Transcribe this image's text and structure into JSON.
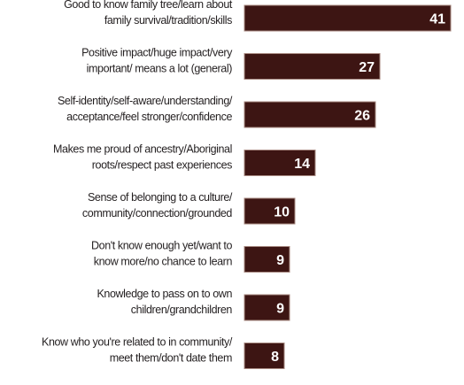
{
  "chart_data": {
    "type": "bar",
    "orientation": "horizontal",
    "categories": [
      [
        "Good to know family tree/learn about",
        "family survival/tradition/skills"
      ],
      [
        "Positive impact/huge impact/very",
        "important/ means a lot (general)"
      ],
      [
        "Self-identity/self-aware/understanding/",
        "acceptance/feel stronger/confidence"
      ],
      [
        "Makes me proud of ancestry/Aboriginal",
        "roots/respect past experiences"
      ],
      [
        "Sense of belonging to a culture/",
        "community/connection/grounded"
      ],
      [
        "Don't know enough yet/want to",
        "know more/no chance to learn"
      ],
      [
        "Knowledge to pass on to own",
        "children/grandchildren"
      ],
      [
        "Know who you're related to in community/",
        "meet them/don't date them"
      ]
    ],
    "values": [
      41,
      27,
      26,
      14,
      10,
      9,
      9,
      8
    ],
    "colors": {
      "bar": "#3d1513",
      "bar_edge": "#a88a82",
      "value_text": "#ffffff",
      "label_text": "#231f20"
    },
    "xlim": [
      0,
      41
    ],
    "grid": false,
    "legend": "none"
  }
}
